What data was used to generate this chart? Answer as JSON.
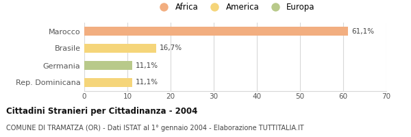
{
  "categories": [
    "Marocco",
    "Brasile",
    "Germania",
    "Rep. Dominicana"
  ],
  "values": [
    61.1,
    16.7,
    11.1,
    11.1
  ],
  "labels": [
    "61,1%",
    "16,7%",
    "11,1%",
    "11,1%"
  ],
  "colors": [
    "#f2ae80",
    "#f5d57a",
    "#b8c98a",
    "#f5d57a"
  ],
  "xlim": [
    0,
    70
  ],
  "xticks": [
    0,
    10,
    20,
    30,
    40,
    50,
    60,
    70
  ],
  "title_bold": "Cittadini Stranieri per Cittadinanza - 2004",
  "subtitle": "COMUNE DI TRAMATZA (OR) - Dati ISTAT al 1° gennaio 2004 - Elaborazione TUTTITALIA.IT",
  "legend_labels": [
    "Africa",
    "America",
    "Europa"
  ],
  "legend_colors": [
    "#f2ae80",
    "#f5d57a",
    "#b8c98a"
  ],
  "bar_height": 0.55,
  "background_color": "#ffffff",
  "grid_color": "#d8d8d8"
}
